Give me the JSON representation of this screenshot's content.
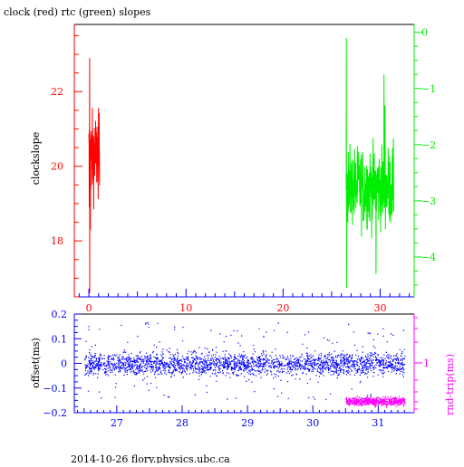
{
  "footer": "2014-10-26 flory.physics.ubc.ca",
  "colors": {
    "red": "#ff0000",
    "green": "#00ee00",
    "blue": "#0000ff",
    "magenta": "#ff00ff",
    "black": "#000000"
  },
  "chart_data": [
    {
      "type": "line",
      "title": "clock (red) rtc (green) slopes",
      "xlabel": "",
      "ylabel": "clockslope",
      "xlim": [
        -1.5,
        33.5
      ],
      "xticks": [
        0,
        10,
        20,
        30
      ],
      "ylim": [
        16.5,
        23.8
      ],
      "yticks": [
        18,
        20,
        22
      ],
      "y2lim": [
        -4.71,
        0.14
      ],
      "y2ticks": [
        0,
        -1,
        -2,
        -3,
        -4
      ],
      "grid": false,
      "series": [
        {
          "name": "clock",
          "axis": "left",
          "color": "#ff0000",
          "x_range": [
            0.0,
            1.1
          ],
          "y_center": 20.3,
          "y_min": 16.6,
          "y_max": 22.9
        },
        {
          "name": "rtc",
          "axis": "right",
          "color": "#00ee00",
          "x_range": [
            26.5,
            31.4
          ],
          "y_center": -2.75,
          "y_min": -4.55,
          "y_max": -0.1
        }
      ]
    },
    {
      "type": "scatter",
      "title": "",
      "xlabel": "",
      "ylabel": "offset(ms)",
      "y2label": "rnd-trip(ms)",
      "xlim": [
        26.35,
        31.55
      ],
      "xticks": [
        27,
        28,
        29,
        30,
        31
      ],
      "ylim": [
        -0.2,
        0.2
      ],
      "yticks": [
        -0.2,
        -0.1,
        0,
        0.1,
        0.2
      ],
      "y2ticks": [
        1
      ],
      "grid": false,
      "series": [
        {
          "name": "offset",
          "axis": "left",
          "color": "#0000ff",
          "x_range": [
            26.5,
            31.4
          ],
          "y_center": 0.0,
          "y_spread": [
            -0.15,
            0.17
          ]
        },
        {
          "name": "rnd-trip",
          "axis": "right",
          "color": "#ff00ff",
          "x_range": [
            30.5,
            31.4
          ],
          "y_center": 0.55
        }
      ]
    }
  ]
}
